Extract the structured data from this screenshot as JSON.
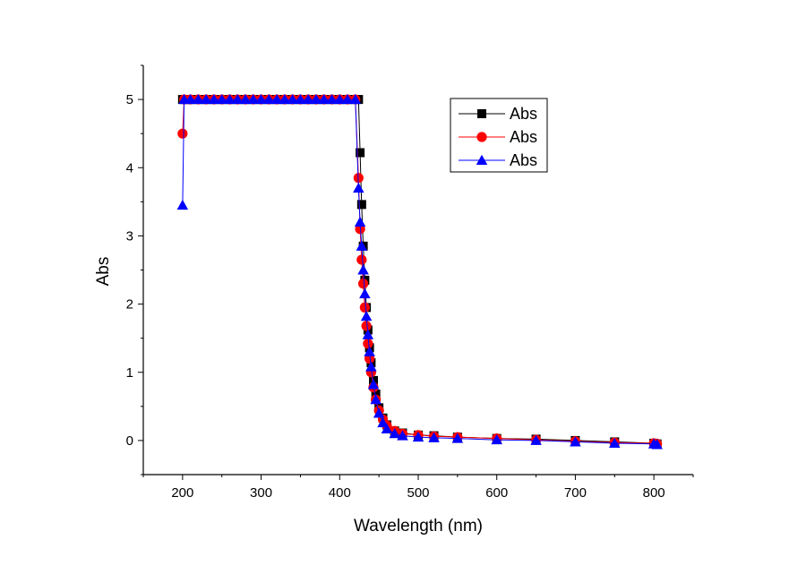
{
  "chart_data": {
    "type": "scatter",
    "xlabel": "Wavelength (nm)",
    "ylabel": "Abs",
    "xlim": [
      150,
      850
    ],
    "ylim": [
      -0.5,
      5.5
    ],
    "x_ticks": [
      200,
      300,
      400,
      500,
      600,
      700,
      800
    ],
    "y_ticks": [
      0,
      1,
      2,
      3,
      4,
      5
    ],
    "legend_position": "top-right",
    "grid": false,
    "series": [
      {
        "name": "Abs",
        "color": "#000000",
        "marker": "square",
        "x": [
          200,
          202,
          210,
          220,
          230,
          240,
          250,
          260,
          270,
          280,
          290,
          300,
          310,
          320,
          330,
          340,
          350,
          360,
          370,
          380,
          390,
          400,
          410,
          420,
          424,
          426,
          428,
          430,
          432,
          434,
          436,
          438,
          440,
          443,
          446,
          450,
          455,
          460,
          470,
          480,
          500,
          520,
          550,
          600,
          650,
          700,
          750,
          800,
          804
        ],
        "y": [
          5.0,
          5.0,
          5.0,
          5.0,
          5.0,
          5.0,
          5.0,
          5.0,
          5.0,
          5.0,
          5.0,
          5.0,
          5.0,
          5.0,
          5.0,
          5.0,
          5.0,
          5.0,
          5.0,
          5.0,
          5.0,
          5.0,
          5.0,
          5.0,
          5.0,
          4.22,
          3.46,
          2.85,
          2.35,
          1.95,
          1.62,
          1.36,
          1.14,
          0.88,
          0.68,
          0.48,
          0.33,
          0.23,
          0.14,
          0.11,
          0.08,
          0.07,
          0.05,
          0.03,
          0.02,
          0.0,
          -0.02,
          -0.04,
          -0.05
        ]
      },
      {
        "name": "Abs",
        "color": "#ff0000",
        "marker": "circle",
        "x": [
          200,
          202,
          210,
          220,
          230,
          240,
          250,
          260,
          270,
          280,
          290,
          300,
          310,
          320,
          330,
          340,
          350,
          360,
          370,
          380,
          390,
          400,
          410,
          420,
          424,
          426,
          428,
          430,
          432,
          434,
          436,
          438,
          440,
          443,
          446,
          450,
          455,
          460,
          470,
          480,
          500,
          520,
          550,
          600,
          650,
          700,
          750,
          800,
          804
        ],
        "y": [
          4.5,
          5.0,
          5.0,
          5.0,
          5.0,
          5.0,
          5.0,
          5.0,
          5.0,
          5.0,
          5.0,
          5.0,
          5.0,
          5.0,
          5.0,
          5.0,
          5.0,
          5.0,
          5.0,
          5.0,
          5.0,
          5.0,
          5.0,
          5.0,
          3.85,
          3.1,
          2.65,
          2.3,
          1.95,
          1.68,
          1.42,
          1.2,
          1.0,
          0.78,
          0.6,
          0.44,
          0.31,
          0.22,
          0.14,
          0.1,
          0.08,
          0.06,
          0.05,
          0.03,
          0.01,
          -0.01,
          -0.03,
          -0.04,
          -0.05
        ]
      },
      {
        "name": "Abs",
        "color": "#0000ff",
        "marker": "triangle",
        "x": [
          200,
          202,
          210,
          220,
          230,
          240,
          250,
          260,
          270,
          280,
          290,
          300,
          310,
          320,
          330,
          340,
          350,
          360,
          370,
          380,
          390,
          400,
          410,
          420,
          424,
          426,
          428,
          430,
          432,
          434,
          436,
          438,
          440,
          443,
          446,
          450,
          455,
          460,
          470,
          480,
          500,
          520,
          550,
          600,
          650,
          700,
          750,
          800,
          804
        ],
        "y": [
          3.45,
          5.0,
          5.0,
          5.0,
          5.0,
          5.0,
          5.0,
          5.0,
          5.0,
          5.0,
          5.0,
          5.0,
          5.0,
          5.0,
          5.0,
          5.0,
          5.0,
          5.0,
          5.0,
          5.0,
          5.0,
          5.0,
          5.0,
          5.0,
          3.7,
          3.2,
          2.85,
          2.5,
          2.15,
          1.82,
          1.55,
          1.3,
          1.08,
          0.82,
          0.6,
          0.4,
          0.26,
          0.17,
          0.1,
          0.07,
          0.05,
          0.04,
          0.03,
          0.01,
          0.0,
          -0.02,
          -0.04,
          -0.05,
          -0.06
        ]
      }
    ]
  }
}
